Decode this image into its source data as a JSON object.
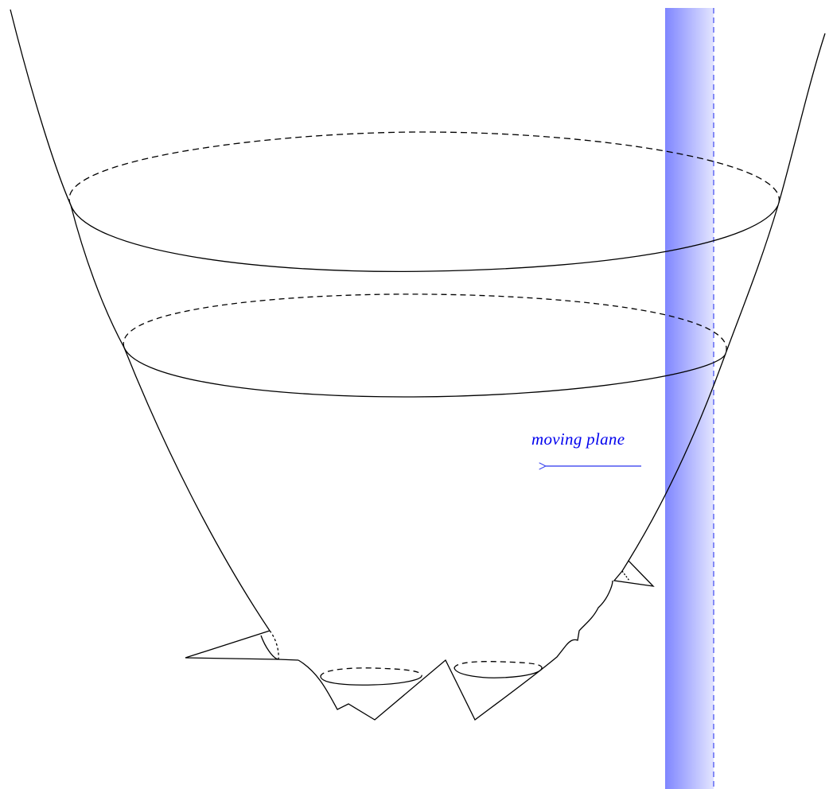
{
  "diagram": {
    "label": "moving plane",
    "colors": {
      "ink": "#000000",
      "plane_strong": "#7f86ff",
      "plane_light": "#dfe1ff",
      "plane_dash": "#4b55f0",
      "annotation": "#0000ee"
    }
  }
}
